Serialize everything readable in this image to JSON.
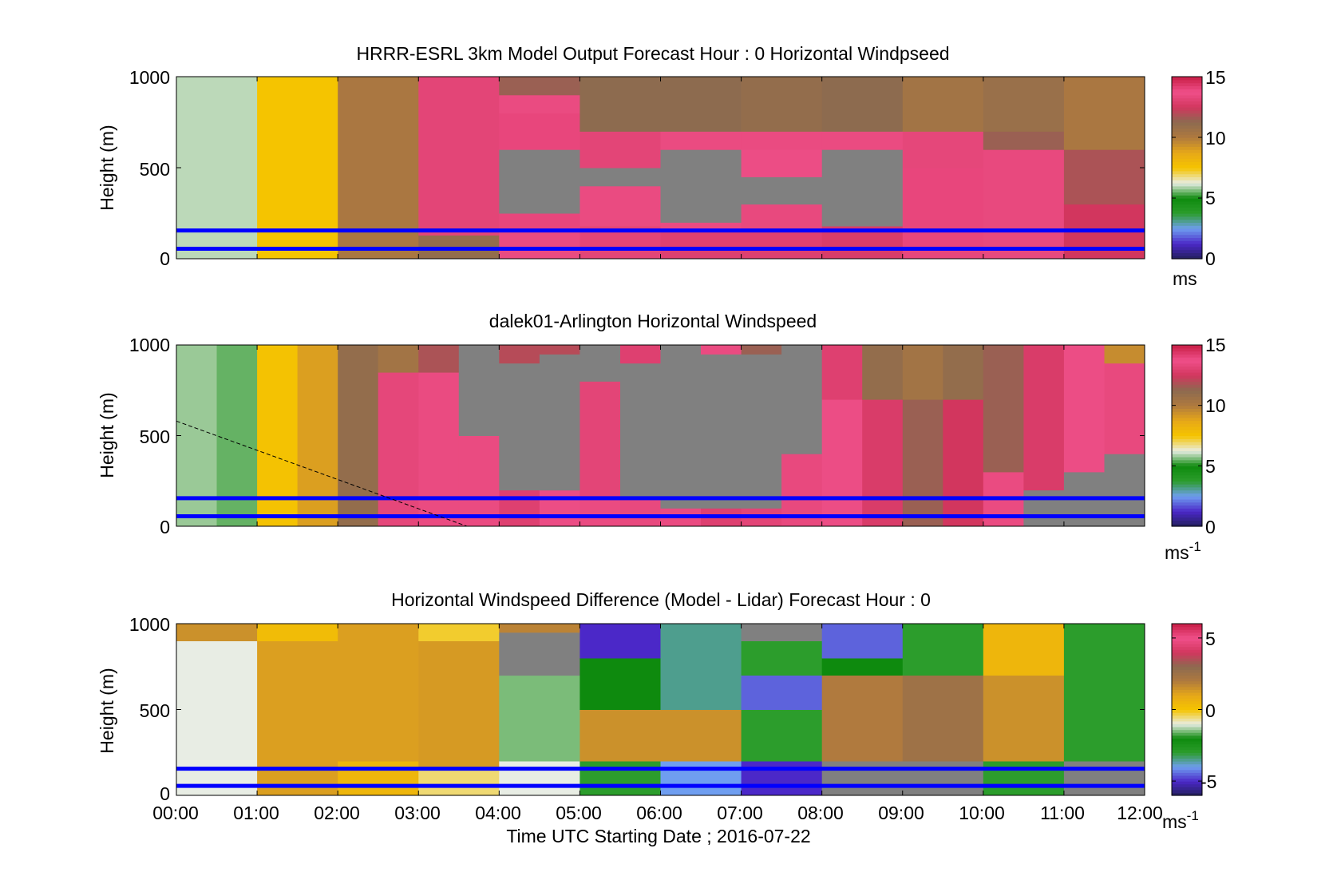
{
  "figure": {
    "xlabel": "Time UTC  Starting Date ; 2016-07-22",
    "xticks": [
      "00:00",
      "01:00",
      "02:00",
      "03:00",
      "04:00",
      "05:00",
      "06:00",
      "07:00",
      "08:00",
      "09:00",
      "10:00",
      "11:00",
      "12:00"
    ]
  },
  "colors": {
    "missing": "#808080",
    "blank": "#ffffff",
    "marker_line": "#0000ff",
    "colormap": [
      "#231f5c",
      "#4b28c8",
      "#6f9ef0",
      "#2c9d2c",
      "#0e8a0e",
      "#e8ede4",
      "#f5c400",
      "#e6a818",
      "#b07a3e",
      "#8c6a50",
      "#d2365e",
      "#f0508a",
      "#c81e46"
    ]
  },
  "chart_data": [
    {
      "type": "heatmap",
      "title": "HRRR-ESRL 3km Model Output   Forecast Hour : 0 Horizontal Windpseed",
      "ylabel": "Height (m)",
      "yticks": [
        "0",
        "500",
        "1000"
      ],
      "ylim": [
        0,
        1000
      ],
      "xlim": [
        0,
        12
      ],
      "cbar": {
        "range": [
          0,
          15
        ],
        "ticks": [
          "0",
          "5",
          "10",
          "15"
        ],
        "tick_values": [
          0,
          5,
          10,
          15
        ],
        "unit": "ms",
        "unit_sup": ""
      },
      "marker_heights": [
        155,
        55
      ],
      "columns": [
        {
          "t0": 0,
          "t1": 1,
          "seg": [
            [
              0,
              1000,
              6
            ]
          ]
        },
        {
          "t0": 1,
          "t1": 2,
          "seg": [
            [
              0,
              1000,
              7.5
            ]
          ]
        },
        {
          "t0": 2,
          "t1": 3,
          "seg": [
            [
              0,
              1000,
              10.2
            ]
          ]
        },
        {
          "t0": 3,
          "t1": 4,
          "seg": [
            [
              0,
              130,
              11
            ],
            [
              130,
              1000,
              13.2
            ]
          ]
        },
        {
          "t0": 4,
          "t1": 5,
          "seg": [
            [
              0,
              160,
              13.5
            ],
            [
              160,
              250,
              14
            ],
            [
              250,
              600,
              null
            ],
            [
              600,
              800,
              14
            ],
            [
              800,
              900,
              13.5
            ],
            [
              900,
              1000,
              11.5
            ]
          ]
        },
        {
          "t0": 5,
          "t1": 6,
          "seg": [
            [
              0,
              180,
              13.2
            ],
            [
              180,
              400,
              13.5
            ],
            [
              400,
              500,
              null
            ],
            [
              500,
              700,
              13.2
            ],
            [
              700,
              1000,
              11.2
            ]
          ]
        },
        {
          "t0": 6,
          "t1": 7,
          "seg": [
            [
              0,
              160,
              13
            ],
            [
              160,
              200,
              13.5
            ],
            [
              200,
              600,
              null
            ],
            [
              600,
              700,
              13.5
            ],
            [
              700,
              1000,
              11.2
            ]
          ]
        },
        {
          "t0": 7,
          "t1": 8,
          "seg": [
            [
              0,
              160,
              13
            ],
            [
              160,
              300,
              13.4
            ],
            [
              300,
              450,
              null
            ],
            [
              450,
              600,
              13.6
            ],
            [
              600,
              700,
              13.5
            ],
            [
              700,
              1000,
              11
            ]
          ]
        },
        {
          "t0": 8,
          "t1": 9,
          "seg": [
            [
              0,
              180,
              12.8
            ],
            [
              180,
              600,
              null
            ],
            [
              600,
              700,
              13.5
            ],
            [
              700,
              1000,
              11.2
            ]
          ]
        },
        {
          "t0": 9,
          "t1": 10,
          "seg": [
            [
              0,
              500,
              14
            ],
            [
              500,
              700,
              13.3
            ],
            [
              700,
              1000,
              10.5
            ]
          ]
        },
        {
          "t0": 10,
          "t1": 11,
          "seg": [
            [
              0,
              600,
              13.4
            ],
            [
              600,
              700,
              11.5
            ],
            [
              700,
              1000,
              10.8
            ]
          ]
        },
        {
          "t0": 11,
          "t1": 12,
          "seg": [
            [
              0,
              300,
              12.5
            ],
            [
              300,
              600,
              11.8
            ],
            [
              600,
              1000,
              10.2
            ]
          ]
        }
      ]
    },
    {
      "type": "heatmap",
      "title": "dalek01-Arlington  Horizontal Windspeed",
      "ylabel": "Height (m)",
      "yticks": [
        "0",
        "500",
        "1000"
      ],
      "ylim": [
        0,
        1000
      ],
      "xlim": [
        0,
        12
      ],
      "cbar": {
        "range": [
          0,
          15
        ],
        "ticks": [
          "0",
          "5",
          "10",
          "15"
        ],
        "tick_values": [
          0,
          5,
          10,
          15
        ],
        "unit": "ms",
        "unit_sup": "-1"
      },
      "marker_heights": [
        155,
        55
      ],
      "columns": [
        {
          "t0": 0,
          "t1": 0.5,
          "seg": [
            [
              0,
              1000,
              5.8
            ]
          ]
        },
        {
          "t0": 0.5,
          "t1": 1,
          "seg": [
            [
              0,
              1000,
              5.5
            ]
          ]
        },
        {
          "t0": 1,
          "t1": 1.5,
          "seg": [
            [
              0,
              1000,
              7.6
            ]
          ]
        },
        {
          "t0": 1.5,
          "t1": 2,
          "seg": [
            [
              0,
              1000,
              9
            ]
          ]
        },
        {
          "t0": 2,
          "t1": 2.5,
          "seg": [
            [
              0,
              1000,
              11
            ]
          ]
        },
        {
          "t0": 2.5,
          "t1": 3,
          "seg": [
            [
              0,
              850,
              13.3
            ],
            [
              850,
              1000,
              10.5
            ]
          ]
        },
        {
          "t0": 3,
          "t1": 3.5,
          "seg": [
            [
              0,
              850,
              13.5
            ],
            [
              850,
              1000,
              11.8
            ]
          ]
        },
        {
          "t0": 3.5,
          "t1": 4,
          "seg": [
            [
              0,
              500,
              13.5
            ],
            [
              500,
              1000,
              null
            ]
          ]
        },
        {
          "t0": 4,
          "t1": 4.5,
          "seg": [
            [
              0,
              200,
              13
            ],
            [
              200,
              900,
              null
            ],
            [
              900,
              1000,
              12
            ]
          ]
        },
        {
          "t0": 4.5,
          "t1": 5,
          "seg": [
            [
              0,
              200,
              13.6
            ],
            [
              200,
              950,
              null
            ],
            [
              950,
              1000,
              12
            ]
          ]
        },
        {
          "t0": 5,
          "t1": 5.5,
          "seg": [
            [
              0,
              150,
              13.5
            ],
            [
              150,
              800,
              13.2
            ],
            [
              800,
              1000,
              null
            ]
          ]
        },
        {
          "t0": 5.5,
          "t1": 6,
          "seg": [
            [
              0,
              150,
              13.4
            ],
            [
              150,
              900,
              null
            ],
            [
              900,
              1000,
              13
            ]
          ]
        },
        {
          "t0": 6,
          "t1": 6.5,
          "seg": [
            [
              0,
              100,
              13.5
            ],
            [
              100,
              1000,
              null
            ]
          ]
        },
        {
          "t0": 6.5,
          "t1": 7,
          "seg": [
            [
              0,
              100,
              13
            ],
            [
              100,
              950,
              null
            ],
            [
              950,
              1000,
              13.5
            ]
          ]
        },
        {
          "t0": 7,
          "t1": 7.5,
          "seg": [
            [
              0,
              100,
              13.2
            ],
            [
              100,
              950,
              null
            ],
            [
              950,
              1000,
              11.5
            ]
          ]
        },
        {
          "t0": 7.5,
          "t1": 8,
          "seg": [
            [
              0,
              400,
              13.4
            ],
            [
              400,
              1000,
              null
            ]
          ]
        },
        {
          "t0": 8,
          "t1": 8.5,
          "seg": [
            [
              0,
              700,
              13.6
            ],
            [
              700,
              1000,
              13
            ]
          ]
        },
        {
          "t0": 8.5,
          "t1": 9,
          "seg": [
            [
              0,
              700,
              12.8
            ],
            [
              700,
              1000,
              11
            ]
          ]
        },
        {
          "t0": 9,
          "t1": 9.5,
          "seg": [
            [
              0,
              700,
              11.5
            ],
            [
              700,
              1000,
              10.5
            ]
          ]
        },
        {
          "t0": 9.5,
          "t1": 10,
          "seg": [
            [
              0,
              700,
              12.5
            ],
            [
              700,
              1000,
              11
            ]
          ]
        },
        {
          "t0": 10,
          "t1": 10.5,
          "seg": [
            [
              0,
              300,
              13.5
            ],
            [
              300,
              1000,
              11.5
            ]
          ]
        },
        {
          "t0": 10.5,
          "t1": 11,
          "seg": [
            [
              0,
              200,
              null
            ],
            [
              200,
              1000,
              12.8
            ]
          ]
        },
        {
          "t0": 11,
          "t1": 11.5,
          "seg": [
            [
              0,
              300,
              null
            ],
            [
              300,
              1000,
              13.6
            ]
          ]
        },
        {
          "t0": 11.5,
          "t1": 12,
          "seg": [
            [
              0,
              400,
              null
            ],
            [
              400,
              900,
              13.4
            ],
            [
              900,
              1000,
              9.5
            ]
          ]
        }
      ]
    },
    {
      "type": "heatmap",
      "title": "Horizontal Windspeed Difference (Model - Lidar) Forecast Hour : 0",
      "ylabel": "Height (m)",
      "yticks": [
        "0",
        "500",
        "1000"
      ],
      "ylim": [
        0,
        1000
      ],
      "xlim": [
        0,
        12
      ],
      "cbar": {
        "range": [
          -6,
          6
        ],
        "ticks": [
          "-5",
          "0",
          "5"
        ],
        "tick_values": [
          -5,
          0,
          5
        ],
        "unit": "ms",
        "unit_sup": "-1"
      },
      "marker_heights": [
        155,
        55
      ],
      "columns": [
        {
          "t0": 0,
          "t1": 1,
          "seg": [
            [
              0,
              900,
              -1
            ],
            [
              900,
              1000,
              1.5
            ]
          ]
        },
        {
          "t0": 1,
          "t1": 2,
          "seg": [
            [
              0,
              900,
              1.2
            ],
            [
              900,
              1000,
              0.3
            ]
          ]
        },
        {
          "t0": 2,
          "t1": 3,
          "seg": [
            [
              0,
              200,
              0.5
            ],
            [
              200,
              1000,
              1.2
            ]
          ]
        },
        {
          "t0": 3,
          "t1": 4,
          "seg": [
            [
              0,
              150,
              -0.5
            ],
            [
              150,
              900,
              1.3
            ],
            [
              900,
              1000,
              -0.2
            ]
          ]
        },
        {
          "t0": 4,
          "t1": 5,
          "seg": [
            [
              0,
              200,
              -1
            ],
            [
              200,
              700,
              -1.5
            ],
            [
              700,
              950,
              null
            ],
            [
              950,
              1000,
              1.8
            ]
          ]
        },
        {
          "t0": 5,
          "t1": 6,
          "seg": [
            [
              0,
              200,
              -3
            ],
            [
              200,
              500,
              1.5
            ],
            [
              500,
              800,
              -2
            ],
            [
              800,
              1000,
              -5
            ]
          ]
        },
        {
          "t0": 6,
          "t1": 7,
          "seg": [
            [
              0,
              200,
              -4
            ],
            [
              200,
              500,
              1.5
            ],
            [
              500,
              1000,
              -3.5
            ]
          ]
        },
        {
          "t0": 7,
          "t1": 8,
          "seg": [
            [
              0,
              200,
              -5
            ],
            [
              200,
              500,
              -3
            ],
            [
              500,
              700,
              -4.5
            ],
            [
              700,
              900,
              -3
            ],
            [
              900,
              1000,
              null
            ]
          ]
        },
        {
          "t0": 8,
          "t1": 9,
          "seg": [
            [
              0,
              200,
              null
            ],
            [
              200,
              700,
              2
            ],
            [
              700,
              800,
              -2
            ],
            [
              800,
              1000,
              -4.5
            ]
          ]
        },
        {
          "t0": 9,
          "t1": 10,
          "seg": [
            [
              0,
              200,
              null
            ],
            [
              200,
              700,
              2.5
            ],
            [
              700,
              1000,
              -3
            ]
          ]
        },
        {
          "t0": 10,
          "t1": 11,
          "seg": [
            [
              0,
              200,
              -3
            ],
            [
              200,
              700,
              1.5
            ],
            [
              700,
              1000,
              0.5
            ]
          ]
        },
        {
          "t0": 11,
          "t1": 12,
          "seg": [
            [
              0,
              200,
              null
            ],
            [
              200,
              1000,
              -3
            ]
          ]
        }
      ]
    }
  ]
}
